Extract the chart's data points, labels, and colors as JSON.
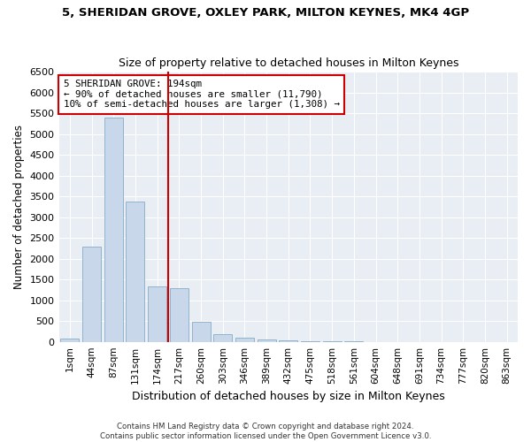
{
  "title1": "5, SHERIDAN GROVE, OXLEY PARK, MILTON KEYNES, MK4 4GP",
  "title2": "Size of property relative to detached houses in Milton Keynes",
  "xlabel": "Distribution of detached houses by size in Milton Keynes",
  "ylabel": "Number of detached properties",
  "bar_labels": [
    "1sqm",
    "44sqm",
    "87sqm",
    "131sqm",
    "174sqm",
    "217sqm",
    "260sqm",
    "303sqm",
    "346sqm",
    "389sqm",
    "432sqm",
    "475sqm",
    "518sqm",
    "561sqm",
    "604sqm",
    "648sqm",
    "691sqm",
    "734sqm",
    "777sqm",
    "820sqm",
    "863sqm"
  ],
  "bar_values": [
    70,
    2280,
    5400,
    3380,
    1340,
    1280,
    480,
    190,
    90,
    55,
    40,
    20,
    10,
    5,
    3,
    2,
    1,
    1,
    1,
    1,
    1
  ],
  "bar_color": "#c8d8ea",
  "bar_edgecolor": "#90b4cc",
  "vline_color": "#cc0000",
  "vline_index": 5,
  "annotation_text": "5 SHERIDAN GROVE: 194sqm\n← 90% of detached houses are smaller (11,790)\n10% of semi-detached houses are larger (1,308) →",
  "ylim": [
    0,
    6500
  ],
  "yticks": [
    0,
    500,
    1000,
    1500,
    2000,
    2500,
    3000,
    3500,
    4000,
    4500,
    5000,
    5500,
    6000,
    6500
  ],
  "plot_bg_color": "#e8eef4",
  "fig_bg_color": "#ffffff",
  "grid_color": "#ffffff",
  "footnote": "Contains HM Land Registry data © Crown copyright and database right 2024.\nContains public sector information licensed under the Open Government Licence v3.0."
}
